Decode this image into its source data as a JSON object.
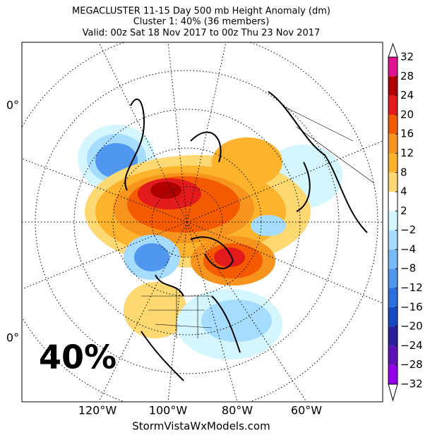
{
  "header": {
    "lines": [
      "MEGACLUSTER 11-15 Day 500 mb Height Anomaly (dm)",
      "Cluster 1: 40% (36 members)",
      "Valid: 00z Sat 18 Nov 2017 to 00z Thu 23 Nov 2017"
    ]
  },
  "map": {
    "left_labels": [
      "0°",
      "0°"
    ],
    "bottom_labels": [
      "120°W",
      "100°W",
      "80°W",
      "60°W"
    ],
    "percent": "40%"
  },
  "colorbar": {
    "labels": [
      "32",
      "28",
      "24",
      "20",
      "16",
      "12",
      "8",
      "4",
      "2",
      "−2",
      "−4",
      "−8",
      "−12",
      "−16",
      "−20",
      "−24",
      "−28",
      "−32"
    ],
    "colors": [
      "#ffffff",
      "#e0128f",
      "#b00000",
      "#e31a1c",
      "#f45a00",
      "#f7941d",
      "#fdb32b",
      "#fed870",
      "#ffffff",
      "#d4f6ff",
      "#a6dcff",
      "#78baf5",
      "#4f97ef",
      "#2a6fe0",
      "#1748c4",
      "#2a1f9e",
      "#5d12b8",
      "#9400e8",
      "#ffffff"
    ]
  },
  "footer": {
    "credit": "StormVistaWxModels.com"
  }
}
